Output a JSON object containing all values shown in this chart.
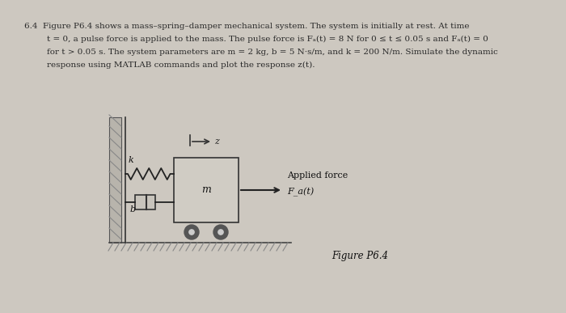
{
  "problem_number": "6.4",
  "background_color": "#cdc8c0",
  "text_color": "#2a2a2a",
  "diagram_bg": "#cdc8c0",
  "spring_label": "k",
  "damper_label": "b",
  "mass_label": "m",
  "arrow_label": "Applied force",
  "force_label": "F_a(t)",
  "z_label": "z",
  "figure_caption": "Figure P6.4",
  "font_size_main": 7.5,
  "font_size_caption": 8.5,
  "line1": "6.4  Figure P6.4 shows a mass–spring–damper mechanical system. The system is initially at rest. At time",
  "line2": "t = 0, a pulse force is applied to the mass. The pulse force is Fₐ(t) = 8 N for 0 ≤ t ≤ 0.05 s and Fₐ(t) = 0",
  "line3": "for t > 0.05 s. The system parameters are m = 2 kg, b = 5 N·s/m, and k = 200 N/m. Simulate the dynamic",
  "line4": "response using MATLAB commands and plot the response z(t)."
}
